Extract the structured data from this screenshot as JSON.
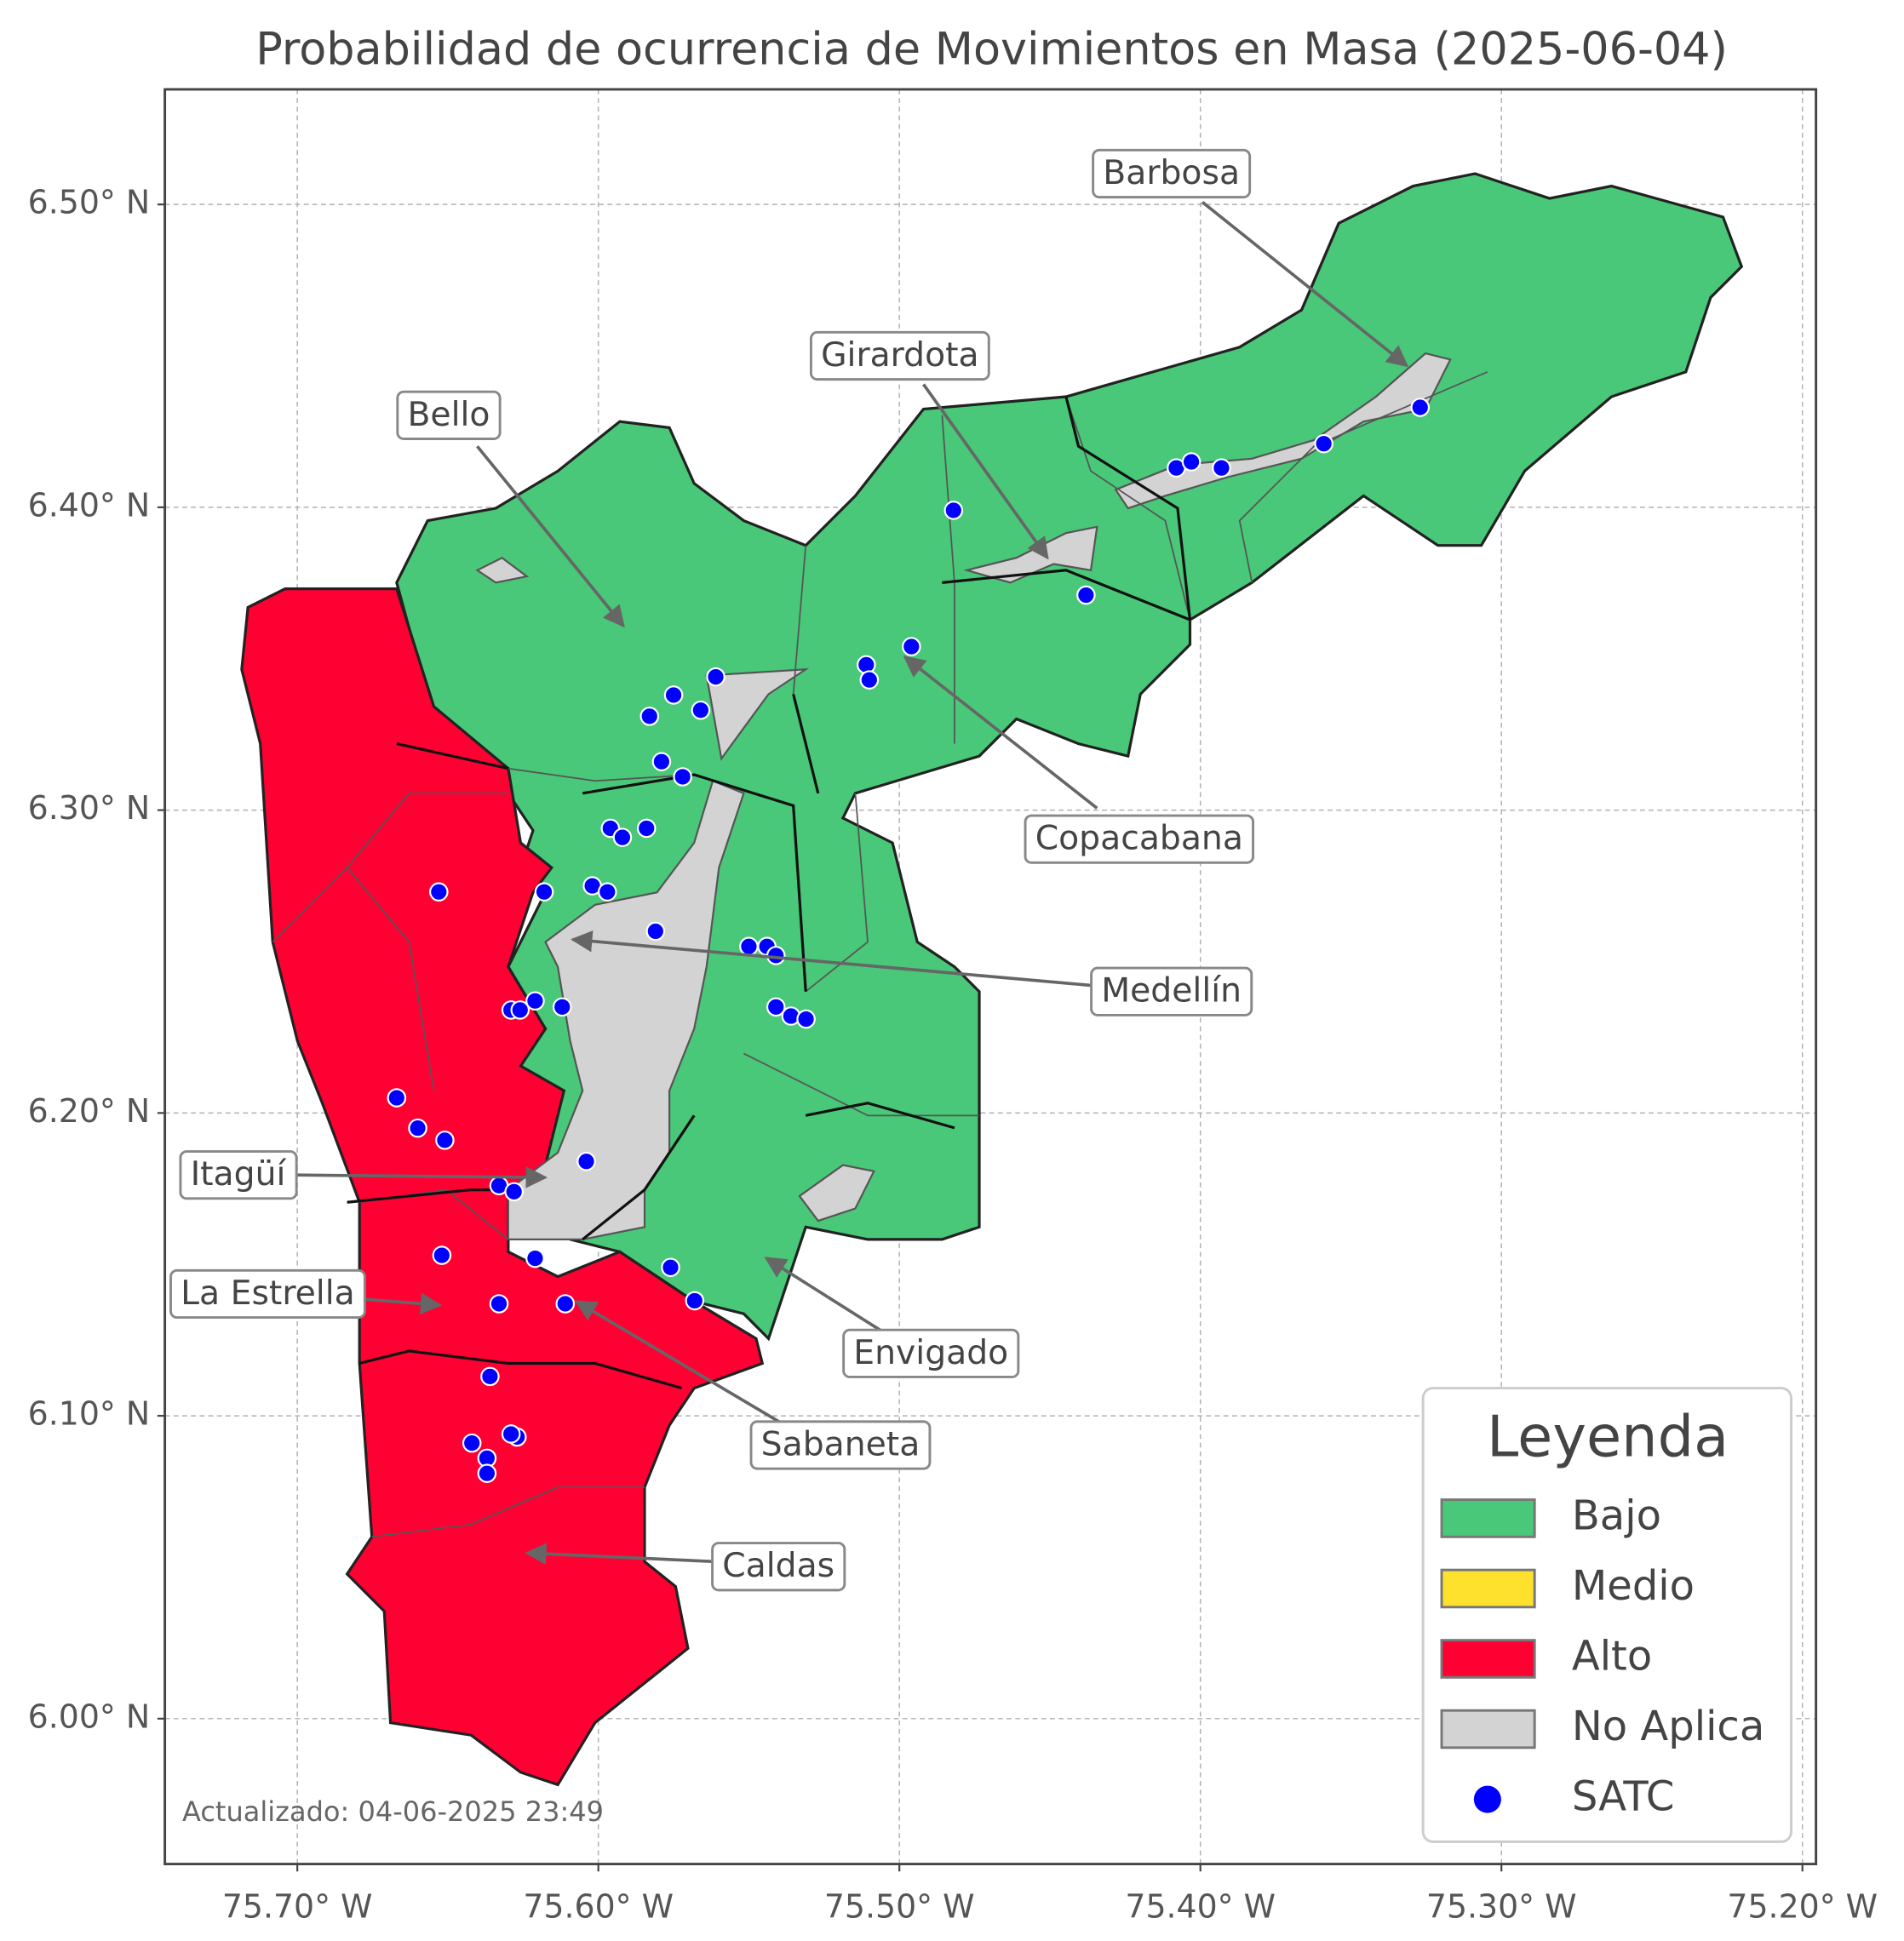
{
  "chart_data": {
    "type": "map",
    "title": "Probabilidad de ocurrencia de Movimientos en Masa (2025-06-04)",
    "xlim": [
      -75.744,
      -75.1955
    ],
    "ylim": [
      5.952,
      6.538
    ],
    "xticks": [
      {
        "value": -75.7,
        "label": "75.70° W"
      },
      {
        "value": -75.6,
        "label": "75.60° W"
      },
      {
        "value": -75.5,
        "label": "75.50° W"
      },
      {
        "value": -75.4,
        "label": "75.40° W"
      },
      {
        "value": -75.3,
        "label": "75.30° W"
      },
      {
        "value": -75.2,
        "label": "75.20° W"
      }
    ],
    "yticks": [
      {
        "value": 6.0,
        "label": "6.00° N"
      },
      {
        "value": 6.1,
        "label": "6.10° N"
      },
      {
        "value": 6.2,
        "label": "6.20° N"
      },
      {
        "value": 6.3,
        "label": "6.30° N"
      },
      {
        "value": 6.4,
        "label": "6.40° N"
      },
      {
        "value": 6.5,
        "label": "6.50° N"
      }
    ],
    "grid": true,
    "annotations": [
      "Barbosa",
      "Girardota",
      "Bello",
      "Copacabana",
      "Medellín",
      "Itagüí",
      "La Estrella",
      "Envigado",
      "Sabaneta",
      "Caldas"
    ],
    "legend": {
      "title": "Leyenda",
      "position": "lower right",
      "items": [
        {
          "label": "Bajo",
          "color": "#48c878"
        },
        {
          "label": "Medio",
          "color": "#fde12c"
        },
        {
          "label": "Alto",
          "color": "#ff0033"
        },
        {
          "label": "No Aplica",
          "color": "#d3d3d3"
        }
      ]
    },
    "series": [
      {
        "name": "SATC",
        "color": "#0000ff",
        "x": [
          -75.327,
          -75.359,
          -75.408,
          -75.403,
          -75.393,
          -75.482,
          -75.438,
          -75.496,
          -75.511,
          -75.51,
          -75.561,
          -75.575,
          -75.566,
          -75.583,
          -75.579,
          -75.572,
          -75.596,
          -75.592,
          -75.584,
          -75.618,
          -75.653,
          -75.602,
          -75.597,
          -75.581,
          -75.55,
          -75.544,
          -75.541,
          -75.541,
          -75.536,
          -75.531,
          -75.621,
          -75.629,
          -75.626,
          -75.612,
          -75.667,
          -75.66,
          -75.651,
          -75.604,
          -75.633,
          -75.628,
          -75.652,
          -75.621,
          -75.576,
          -75.568,
          -75.633,
          -75.611,
          -75.636,
          -75.642,
          -75.627,
          -75.629,
          -75.637,
          -75.637
        ],
        "values": [
          6.433,
          6.421,
          6.413,
          6.415,
          6.413,
          6.399,
          6.371,
          6.354,
          6.348,
          6.343,
          6.344,
          6.338,
          6.333,
          6.331,
          6.316,
          6.311,
          6.294,
          6.291,
          6.294,
          6.273,
          6.273,
          6.275,
          6.273,
          6.26,
          6.255,
          6.255,
          6.252,
          6.235,
          6.232,
          6.231,
          6.237,
          6.234,
          6.234,
          6.235,
          6.205,
          6.195,
          6.191,
          6.184,
          6.176,
          6.174,
          6.153,
          6.152,
          6.149,
          6.138,
          6.137,
          6.137,
          6.113,
          6.091,
          6.093,
          6.094,
          6.086,
          6.081
        ]
      }
    ],
    "footer": "Actualizado: 04-06-2025 23:49"
  }
}
